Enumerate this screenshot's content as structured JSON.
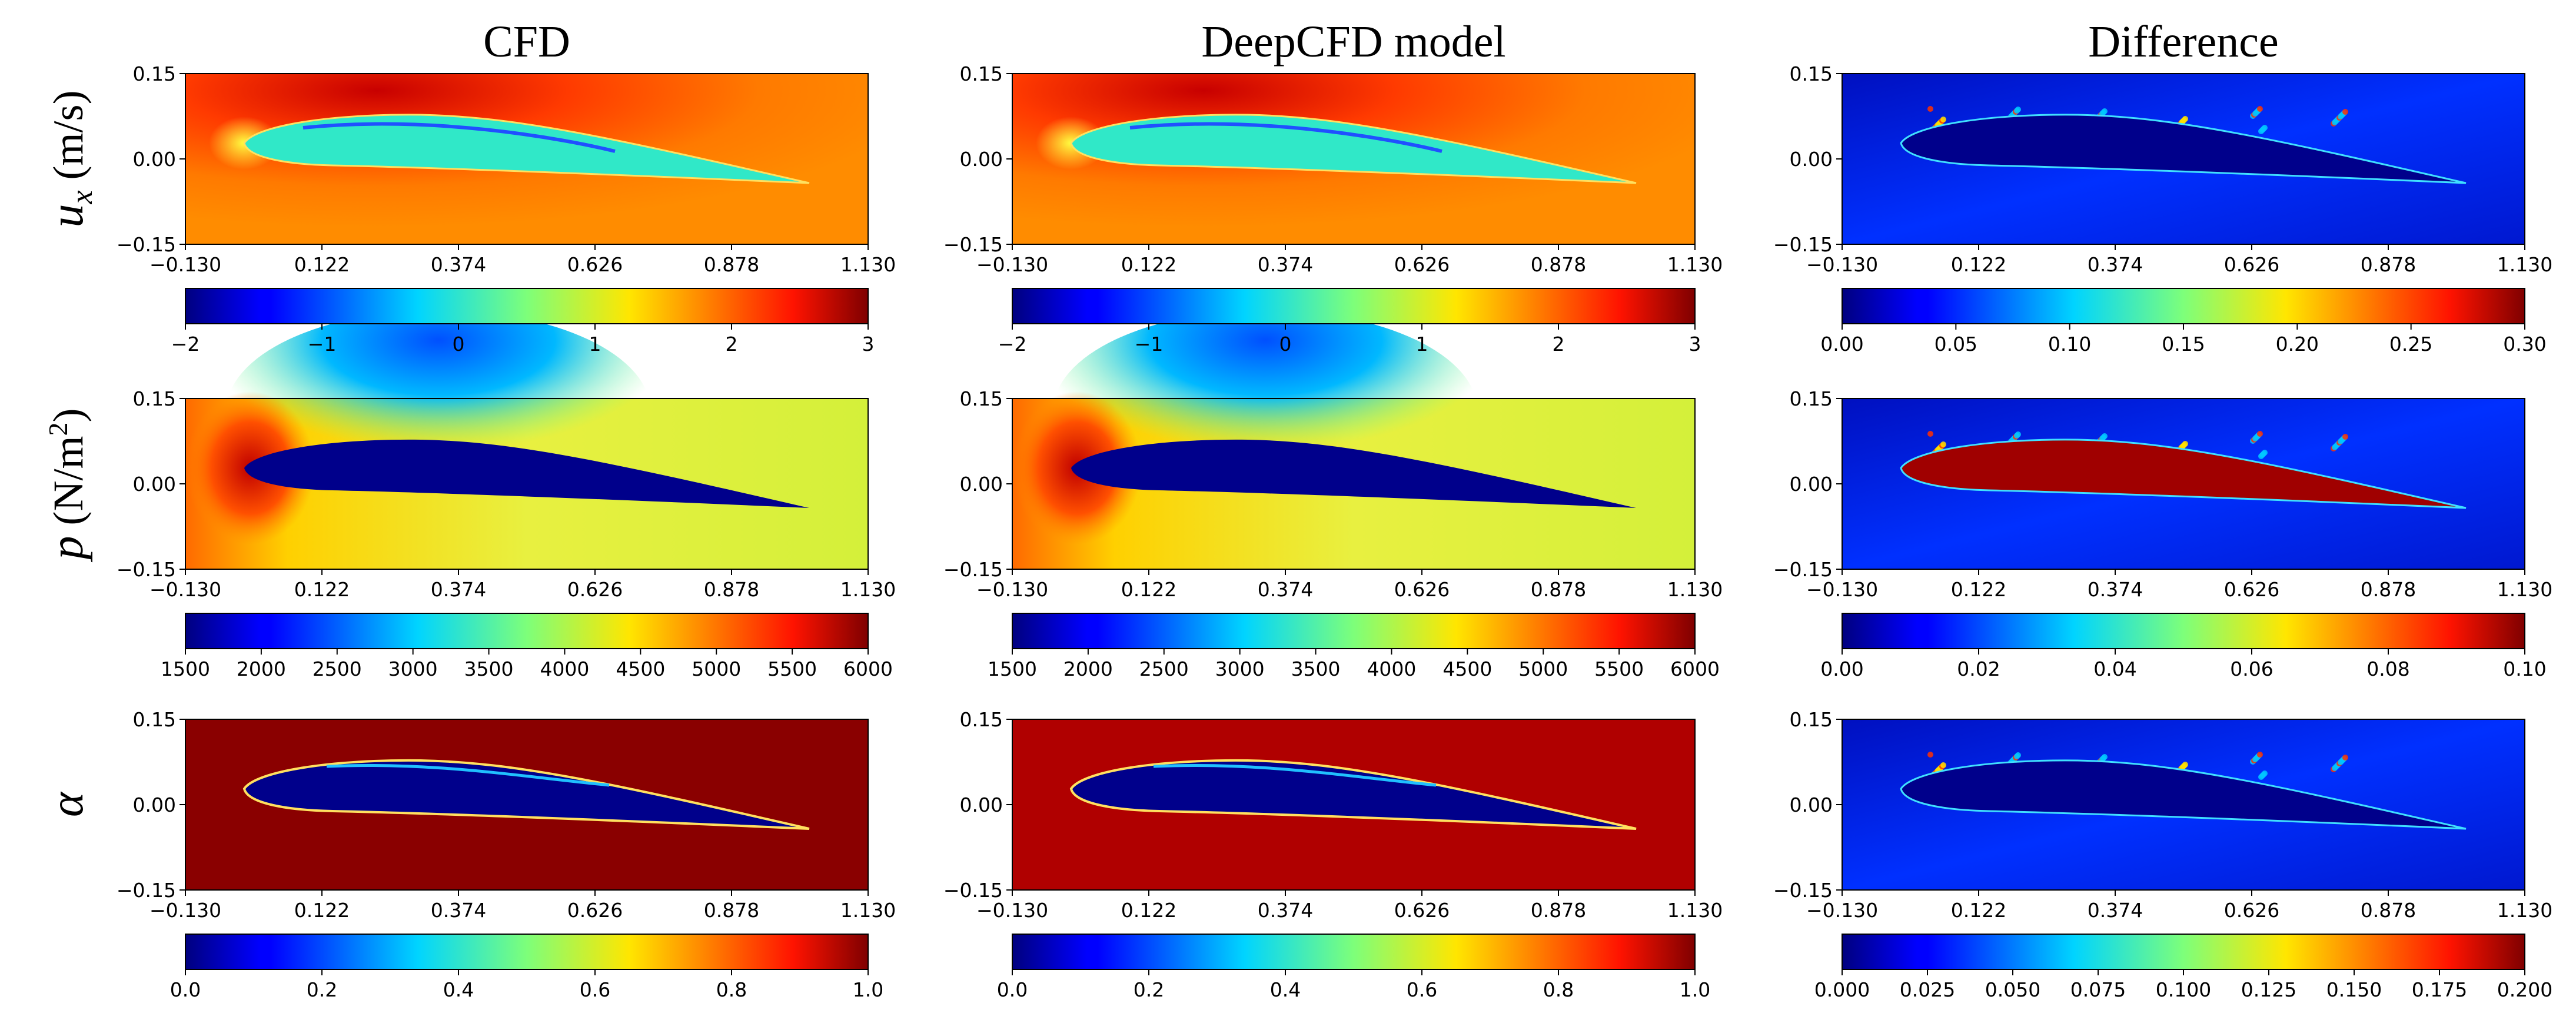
{
  "chart_data": {
    "type": "heatmap",
    "column_titles": [
      "CFD",
      "DeepCFD model",
      "Difference"
    ],
    "row_labels": [
      {
        "symbol": "u",
        "sub": "x",
        "unit": " (m/s)"
      },
      {
        "symbol": "p",
        "sub": "",
        "unit": " (N/m",
        "sup": "2",
        "unit_end": ")"
      },
      {
        "symbol": "α",
        "sub": "",
        "unit": ""
      }
    ],
    "x_ticks": [
      "−0.130",
      "0.122",
      "0.374",
      "0.626",
      "0.878",
      "1.130"
    ],
    "y_ticks": [
      "0.15",
      "0.00",
      "−0.15"
    ],
    "xlim": [
      -0.13,
      1.13
    ],
    "ylim": [
      -0.15,
      0.15
    ],
    "colormap": "jet",
    "panels": [
      {
        "row": 0,
        "col": 0,
        "field": "u_x CFD",
        "clim": [
          -2,
          3
        ]
      },
      {
        "row": 0,
        "col": 1,
        "field": "u_x DeepCFD",
        "clim": [
          -2,
          3
        ]
      },
      {
        "row": 0,
        "col": 2,
        "field": "u_x difference",
        "clim": [
          0,
          0.3
        ]
      },
      {
        "row": 1,
        "col": 0,
        "field": "p CFD",
        "clim": [
          1500,
          6000
        ]
      },
      {
        "row": 1,
        "col": 1,
        "field": "p DeepCFD",
        "clim": [
          1500,
          6000
        ]
      },
      {
        "row": 1,
        "col": 2,
        "field": "p difference",
        "clim": [
          0,
          0.1
        ]
      },
      {
        "row": 2,
        "col": 0,
        "field": "alpha CFD",
        "clim": [
          0,
          1
        ]
      },
      {
        "row": 2,
        "col": 1,
        "field": "alpha DeepCFD",
        "clim": [
          0,
          1
        ]
      },
      {
        "row": 2,
        "col": 2,
        "field": "alpha difference",
        "clim": [
          0,
          0.2
        ]
      }
    ],
    "colorbars": [
      {
        "row": 0,
        "col": 0,
        "ticks": [
          "−2",
          "−1",
          "0",
          "1",
          "2",
          "3"
        ]
      },
      {
        "row": 0,
        "col": 1,
        "ticks": [
          "−2",
          "−1",
          "0",
          "1",
          "2",
          "3"
        ]
      },
      {
        "row": 0,
        "col": 2,
        "ticks": [
          "0.00",
          "0.05",
          "0.10",
          "0.15",
          "0.20",
          "0.25",
          "0.30"
        ]
      },
      {
        "row": 1,
        "col": 0,
        "ticks": [
          "1500",
          "2000",
          "2500",
          "3000",
          "3500",
          "4000",
          "4500",
          "5000",
          "5500",
          "6000"
        ]
      },
      {
        "row": 1,
        "col": 1,
        "ticks": [
          "1500",
          "2000",
          "2500",
          "3000",
          "3500",
          "4000",
          "4500",
          "5000",
          "5500",
          "6000"
        ]
      },
      {
        "row": 1,
        "col": 2,
        "ticks": [
          "0.00",
          "0.02",
          "0.04",
          "0.06",
          "0.08",
          "0.10"
        ]
      },
      {
        "row": 2,
        "col": 0,
        "ticks": [
          "0.0",
          "0.2",
          "0.4",
          "0.6",
          "0.8",
          "1.0"
        ]
      },
      {
        "row": 2,
        "col": 1,
        "ticks": [
          "0.0",
          "0.2",
          "0.4",
          "0.6",
          "0.8",
          "1.0"
        ]
      },
      {
        "row": 2,
        "col": 2,
        "ticks": [
          "0.000",
          "0.025",
          "0.050",
          "0.075",
          "0.100",
          "0.125",
          "0.150",
          "0.175",
          "0.200"
        ]
      }
    ]
  }
}
